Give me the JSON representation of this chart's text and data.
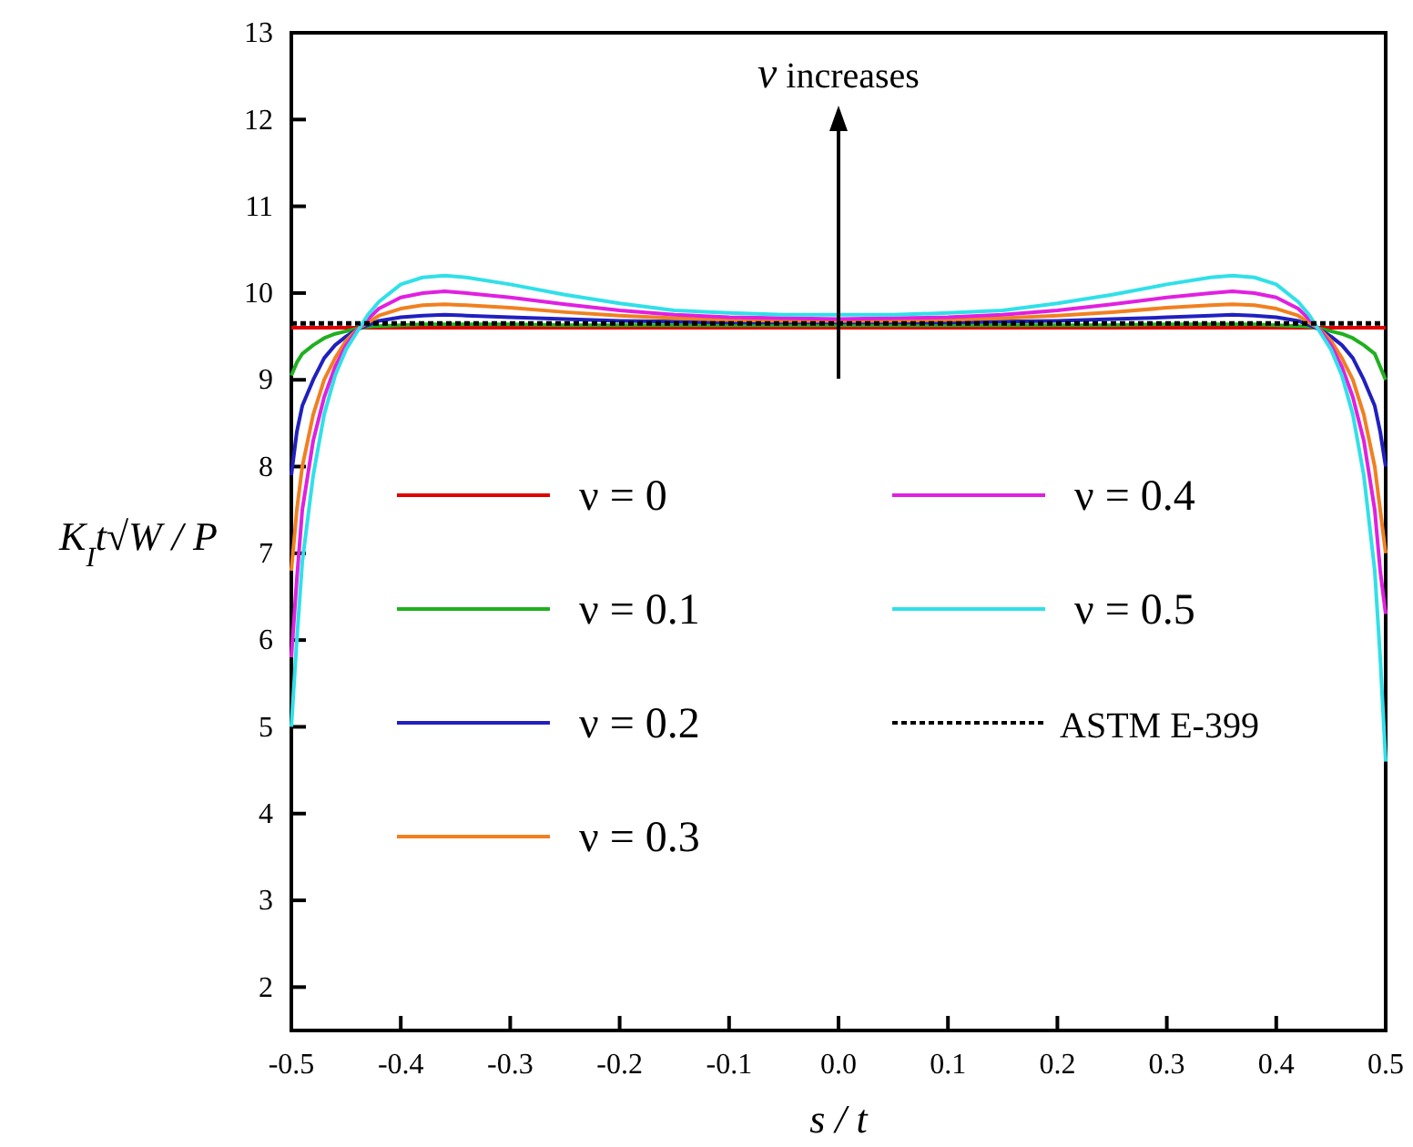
{
  "chart_data": {
    "type": "line",
    "xlabel": "s / t",
    "ylabel": "K$_{I}$t√W / P",
    "annotations": [
      "ν increases"
    ],
    "xlim": [
      -0.5,
      0.5
    ],
    "ylim": [
      1.5,
      13
    ],
    "xticks": [
      -0.5,
      -0.4,
      -0.3,
      -0.2,
      -0.1,
      {
        "value": 0,
        "label": "0.0"
      },
      0.1,
      0.2,
      0.3,
      0.4,
      0.5
    ],
    "yticks": [
      2,
      3,
      4,
      5,
      6,
      7,
      8,
      9,
      10,
      11,
      12,
      13
    ],
    "grid": false,
    "legend": "center",
    "marker": "none",
    "line_style": "solid",
    "series": [
      {
        "name": "ν = 0",
        "color": "#e00000",
        "x": [
          -0.5,
          0.5
        ],
        "values": [
          9.6,
          9.6
        ]
      },
      {
        "name": "ν = 0.1",
        "color": "#20b020",
        "x": [
          -0.5,
          -0.495,
          -0.49,
          -0.48,
          -0.47,
          -0.46,
          -0.45,
          -0.44,
          -0.43,
          -0.42,
          -0.4,
          -0.38,
          -0.36,
          -0.34,
          -0.3,
          -0.25,
          -0.2,
          -0.15,
          -0.1,
          -0.05,
          0,
          0.05,
          0.1,
          0.15,
          0.2,
          0.25,
          0.3,
          0.34,
          0.36,
          0.38,
          0.4,
          0.42,
          0.43,
          0.44,
          0.45,
          0.46,
          0.47,
          0.48,
          0.49,
          0.495,
          0.5
        ],
        "values": [
          9.05,
          9.2,
          9.3,
          9.4,
          9.48,
          9.53,
          9.56,
          9.59,
          9.61,
          9.62,
          9.63,
          9.64,
          9.64,
          9.64,
          9.64,
          9.63,
          9.63,
          9.63,
          9.63,
          9.63,
          9.63,
          9.63,
          9.63,
          9.63,
          9.63,
          9.63,
          9.64,
          9.64,
          9.64,
          9.64,
          9.63,
          9.62,
          9.61,
          9.59,
          9.56,
          9.53,
          9.48,
          9.4,
          9.3,
          9.15,
          9.0
        ]
      },
      {
        "name": "ν = 0.2",
        "color": "#2020c0",
        "x": [
          -0.5,
          -0.495,
          -0.49,
          -0.48,
          -0.47,
          -0.46,
          -0.45,
          -0.44,
          -0.43,
          -0.42,
          -0.4,
          -0.38,
          -0.36,
          -0.34,
          -0.3,
          -0.25,
          -0.2,
          -0.15,
          -0.1,
          -0.05,
          0,
          0.05,
          0.1,
          0.15,
          0.2,
          0.25,
          0.3,
          0.34,
          0.36,
          0.38,
          0.4,
          0.42,
          0.43,
          0.44,
          0.45,
          0.46,
          0.47,
          0.48,
          0.49,
          0.495,
          0.5
        ],
        "values": [
          7.9,
          8.4,
          8.7,
          9.0,
          9.25,
          9.4,
          9.5,
          9.58,
          9.63,
          9.68,
          9.72,
          9.74,
          9.75,
          9.74,
          9.72,
          9.7,
          9.68,
          9.67,
          9.66,
          9.66,
          9.66,
          9.66,
          9.66,
          9.67,
          9.68,
          9.7,
          9.72,
          9.74,
          9.75,
          9.74,
          9.72,
          9.68,
          9.63,
          9.58,
          9.5,
          9.4,
          9.25,
          9.0,
          8.7,
          8.4,
          8.0
        ]
      },
      {
        "name": "ν = 0.3",
        "color": "#f08020",
        "x": [
          -0.5,
          -0.495,
          -0.49,
          -0.48,
          -0.47,
          -0.46,
          -0.45,
          -0.44,
          -0.43,
          -0.42,
          -0.4,
          -0.38,
          -0.36,
          -0.34,
          -0.3,
          -0.25,
          -0.2,
          -0.15,
          -0.1,
          -0.05,
          0,
          0.05,
          0.1,
          0.15,
          0.2,
          0.25,
          0.3,
          0.34,
          0.36,
          0.38,
          0.4,
          0.42,
          0.43,
          0.44,
          0.45,
          0.46,
          0.47,
          0.48,
          0.49,
          0.495,
          0.5
        ],
        "values": [
          6.8,
          7.5,
          8.0,
          8.6,
          9.0,
          9.25,
          9.45,
          9.58,
          9.66,
          9.74,
          9.82,
          9.86,
          9.87,
          9.86,
          9.83,
          9.78,
          9.74,
          9.71,
          9.69,
          9.68,
          9.68,
          9.68,
          9.69,
          9.71,
          9.74,
          9.78,
          9.83,
          9.86,
          9.87,
          9.86,
          9.82,
          9.74,
          9.66,
          9.58,
          9.45,
          9.25,
          9.0,
          8.6,
          8.0,
          7.5,
          7.0
        ]
      },
      {
        "name": "ν = 0.4",
        "color": "#e020e0",
        "x": [
          -0.5,
          -0.495,
          -0.49,
          -0.48,
          -0.47,
          -0.46,
          -0.45,
          -0.44,
          -0.43,
          -0.42,
          -0.4,
          -0.38,
          -0.36,
          -0.34,
          -0.3,
          -0.25,
          -0.2,
          -0.15,
          -0.1,
          -0.05,
          0,
          0.05,
          0.1,
          0.15,
          0.2,
          0.25,
          0.3,
          0.34,
          0.36,
          0.38,
          0.4,
          0.42,
          0.43,
          0.44,
          0.45,
          0.46,
          0.47,
          0.48,
          0.49,
          0.495,
          0.5
        ],
        "values": [
          5.8,
          6.7,
          7.5,
          8.3,
          8.8,
          9.15,
          9.4,
          9.57,
          9.7,
          9.82,
          9.95,
          10.0,
          10.02,
          10.0,
          9.95,
          9.87,
          9.8,
          9.75,
          9.72,
          9.71,
          9.7,
          9.71,
          9.72,
          9.75,
          9.8,
          9.87,
          9.95,
          10.0,
          10.02,
          10.0,
          9.95,
          9.82,
          9.7,
          9.57,
          9.4,
          9.15,
          8.8,
          8.3,
          7.5,
          6.8,
          6.3
        ]
      },
      {
        "name": "ν = 0.5",
        "color": "#30e0e8",
        "x": [
          -0.5,
          -0.495,
          -0.49,
          -0.48,
          -0.47,
          -0.46,
          -0.45,
          -0.44,
          -0.43,
          -0.42,
          -0.4,
          -0.38,
          -0.36,
          -0.34,
          -0.3,
          -0.25,
          -0.2,
          -0.15,
          -0.1,
          -0.05,
          0,
          0.05,
          0.1,
          0.15,
          0.2,
          0.25,
          0.3,
          0.34,
          0.36,
          0.38,
          0.4,
          0.42,
          0.43,
          0.44,
          0.45,
          0.46,
          0.47,
          0.48,
          0.49,
          0.495,
          0.5
        ],
        "values": [
          5.0,
          6.0,
          6.9,
          7.9,
          8.6,
          9.05,
          9.35,
          9.55,
          9.75,
          9.9,
          10.1,
          10.18,
          10.2,
          10.18,
          10.1,
          9.98,
          9.88,
          9.8,
          9.77,
          9.75,
          9.75,
          9.75,
          9.77,
          9.8,
          9.88,
          9.98,
          10.1,
          10.18,
          10.2,
          10.18,
          10.1,
          9.9,
          9.75,
          9.55,
          9.35,
          9.05,
          8.6,
          7.9,
          6.8,
          5.8,
          4.6
        ]
      },
      {
        "name": "ASTM E-399",
        "color": "#000000",
        "line_style": "dotted",
        "x": [
          -0.5,
          0.5
        ],
        "values": [
          9.65,
          9.65
        ]
      }
    ]
  }
}
